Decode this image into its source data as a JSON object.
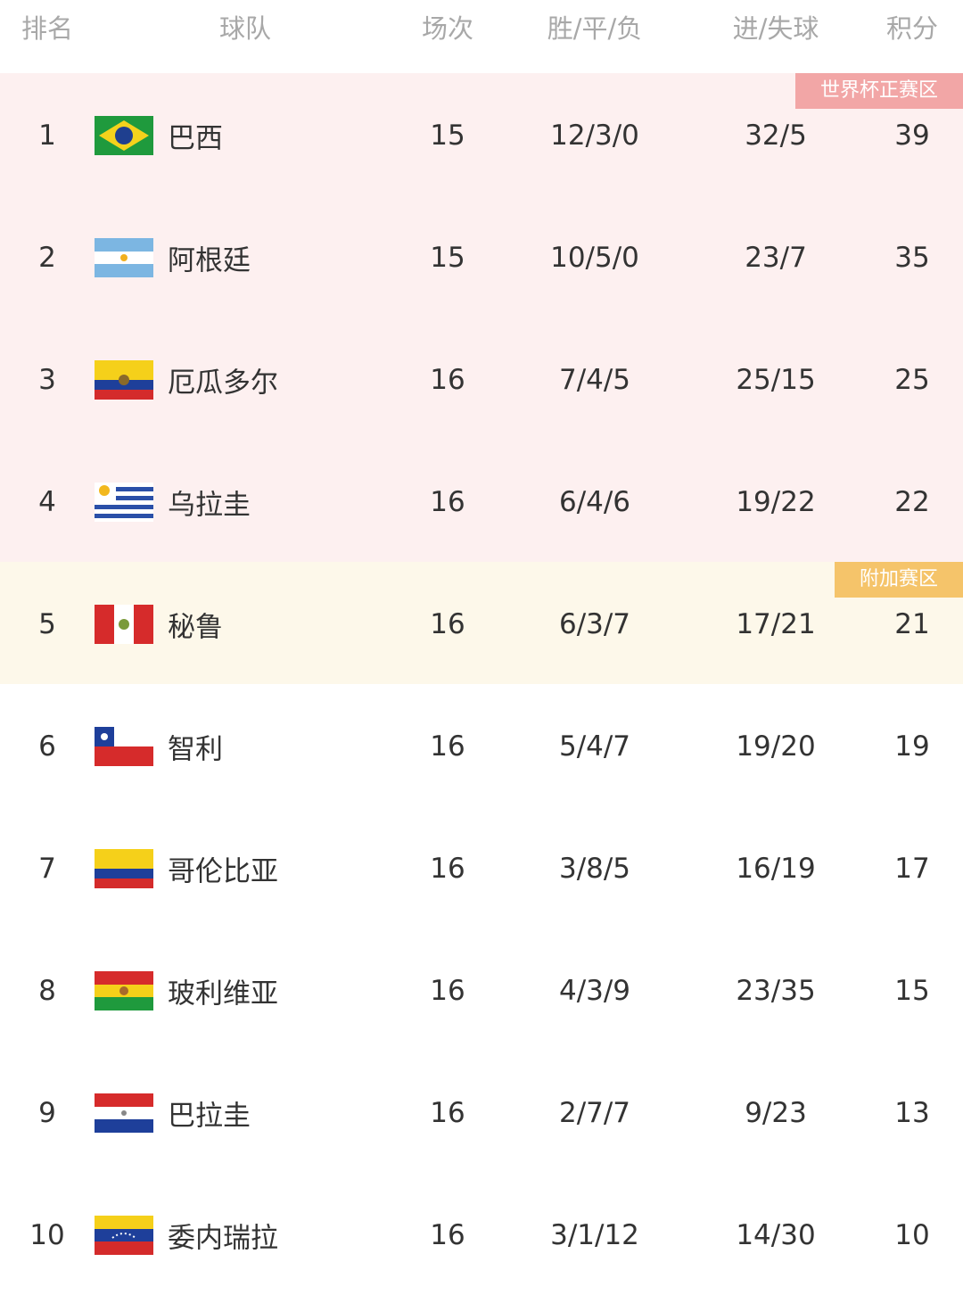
{
  "table": {
    "headers": [
      "排名",
      "球队",
      "场次",
      "胜/平/负",
      "进/失球",
      "积分"
    ],
    "zones": [
      "世界杯正赛区",
      "附加赛区"
    ],
    "rows": [
      [
        "1",
        "巴西",
        "15",
        "12/3/0",
        "32/5",
        "39"
      ],
      [
        "2",
        "阿根廷",
        "15",
        "10/5/0",
        "23/7",
        "35"
      ],
      [
        "3",
        "厄瓜多尔",
        "16",
        "7/4/5",
        "25/15",
        "25"
      ],
      [
        "4",
        "乌拉圭",
        "16",
        "6/4/6",
        "19/22",
        "22"
      ],
      [
        "5",
        "秘鲁",
        "16",
        "6/3/7",
        "17/21",
        "21"
      ],
      [
        "6",
        "智利",
        "16",
        "5/4/7",
        "19/20",
        "19"
      ],
      [
        "7",
        "哥伦比亚",
        "16",
        "3/8/5",
        "16/19",
        "17"
      ],
      [
        "8",
        "玻利维亚",
        "16",
        "4/3/9",
        "23/35",
        "15"
      ],
      [
        "9",
        "巴拉圭",
        "16",
        "2/7/7",
        "9/23",
        "13"
      ],
      [
        "10",
        "委内瑞拉",
        "16",
        "3/1/12",
        "14/30",
        "10"
      ]
    ]
  }
}
